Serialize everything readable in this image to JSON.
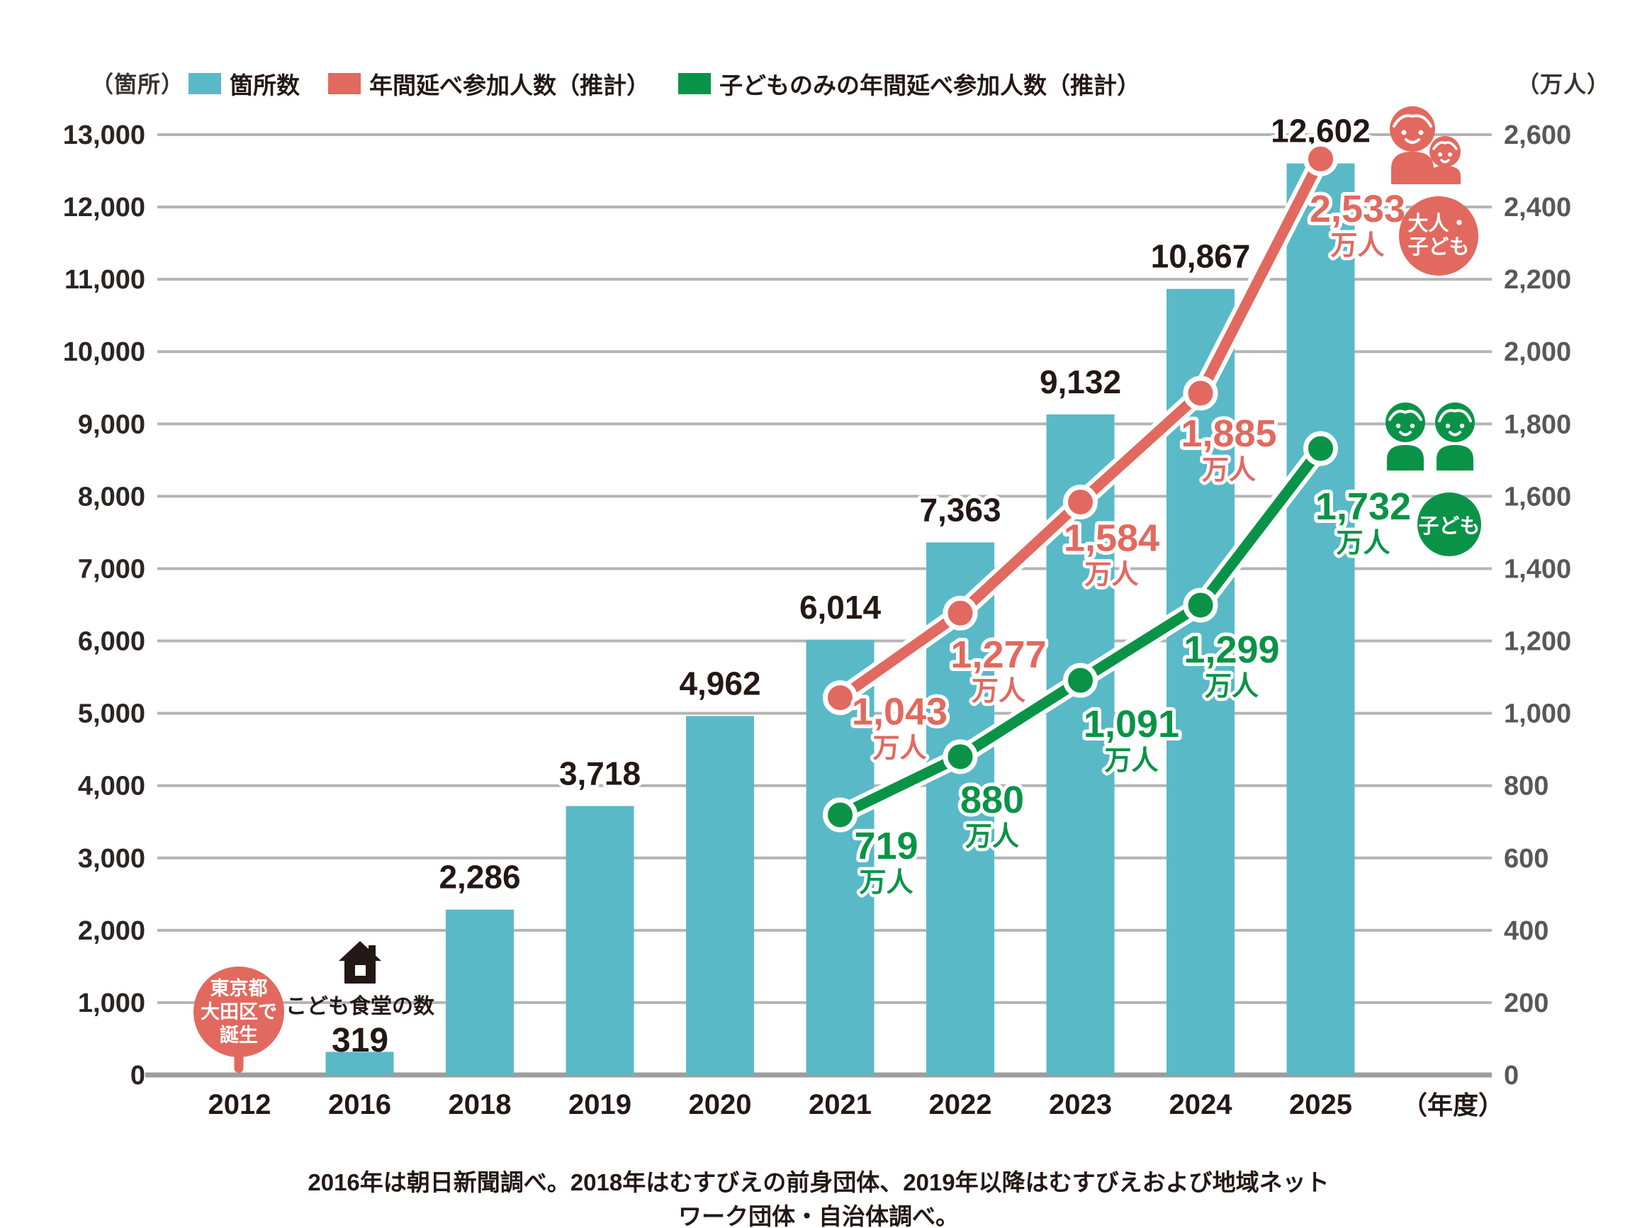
{
  "legend": {
    "left_unit": "（箇所）",
    "right_unit": "（万人）",
    "items": [
      {
        "label": "箇所数",
        "color": "#5ab9c7"
      },
      {
        "label": "年間延べ参加人数（推計）",
        "color": "#e2695f"
      },
      {
        "label": "子どものみの年間延べ参加人数（推計）",
        "color": "#0a9347"
      }
    ]
  },
  "chart_data": {
    "type": "combo-bar-line",
    "categories": [
      "2012",
      "2016",
      "2018",
      "2019",
      "2020",
      "2021",
      "2022",
      "2023",
      "2024",
      "2025"
    ],
    "x_axis_label": "（年度）",
    "grid": true,
    "left_axis": {
      "unit": "（箇所）",
      "min": 0,
      "max": 13000,
      "tick_step": 1000
    },
    "right_axis": {
      "unit": "（万人）",
      "min": 0,
      "max": 2600,
      "tick_step": 200
    },
    "bars": {
      "name": "箇所数",
      "color": "#5ab9c7",
      "values": [
        null,
        319,
        2286,
        3718,
        4962,
        6014,
        7363,
        9132,
        10867,
        12602
      ],
      "label_from_index": 2
    },
    "series": [
      {
        "name": "年間延べ参加人数（推計）",
        "color": "#e2695f",
        "unit_suffix": "万人",
        "points": [
          {
            "category": "2021",
            "value": 1043,
            "label_dx": 84,
            "label_dy": 38
          },
          {
            "category": "2022",
            "value": 1277,
            "label_dx": 54,
            "label_dy": 77
          },
          {
            "category": "2023",
            "value": 1584,
            "label_dx": 44,
            "label_dy": 69
          },
          {
            "category": "2024",
            "value": 1885,
            "label_dx": 40,
            "label_dy": 75
          },
          {
            "category": "2025",
            "value": 2533,
            "label_dx": 52,
            "label_dy": 89
          }
        ]
      },
      {
        "name": "子どものみの年間延べ参加人数（推計）",
        "color": "#0a9347",
        "unit_suffix": "万人",
        "points": [
          {
            "category": "2021",
            "value": 719,
            "label_dx": 65,
            "label_dy": 62
          },
          {
            "category": "2022",
            "value": 880,
            "label_dx": 45,
            "label_dy": 79
          },
          {
            "category": "2023",
            "value": 1091,
            "label_dx": 72,
            "label_dy": 80
          },
          {
            "category": "2024",
            "value": 1299,
            "label_dx": 44,
            "label_dy": 81
          },
          {
            "category": "2025",
            "value": 1732,
            "label_dx": 60,
            "label_dy": 100
          }
        ]
      }
    ]
  },
  "annotations": {
    "balloon_2012": {
      "line1": "東京都",
      "line2": "大田区で",
      "line3": "誕生",
      "color": "#e2695f"
    },
    "house_2016": {
      "caption": "こども食堂の数",
      "value": "319"
    },
    "badge_adults": {
      "line1": "大人・",
      "line2": "子ども",
      "color": "#e2695f"
    },
    "badge_children": {
      "label": "子ども",
      "color": "#0a9347"
    }
  },
  "footnote": "2016年は朝日新聞調べ。2018年はむすびえの前身団体、2019年以降はむすびえおよび地域ネットワーク団体・自治体調べ。"
}
